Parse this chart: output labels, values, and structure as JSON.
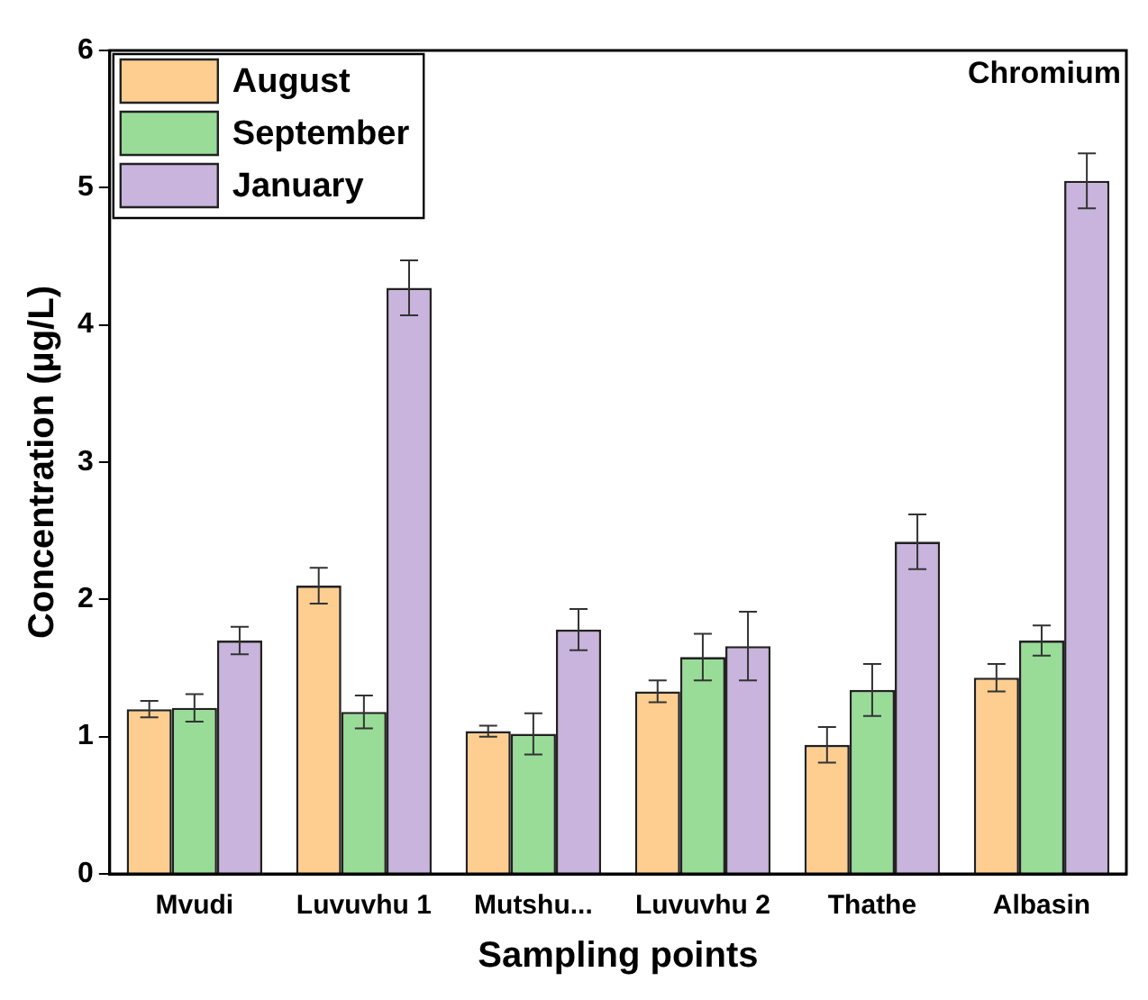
{
  "chart_data": {
    "type": "bar",
    "xlabel": "Sampling points",
    "ylabel": "Concentration (µg/L)",
    "annotations": [
      "Chromium"
    ],
    "categories": [
      "Mvudi",
      "Luvuvhu 1",
      "Mutshu...",
      "Luvuvhu 2",
      "Thathe",
      "Albasin"
    ],
    "series": [
      {
        "name": "August",
        "color": "#fdce90",
        "values": [
          1.2,
          2.1,
          1.04,
          1.33,
          0.94,
          1.43
        ],
        "errors": [
          0.06,
          0.13,
          0.04,
          0.08,
          0.13,
          0.1
        ]
      },
      {
        "name": "September",
        "color": "#98dc98",
        "values": [
          1.21,
          1.18,
          1.02,
          1.58,
          1.34,
          1.7
        ],
        "errors": [
          0.1,
          0.12,
          0.15,
          0.17,
          0.19,
          0.11
        ]
      },
      {
        "name": "January",
        "color": "#c8b4dc",
        "values": [
          1.7,
          4.27,
          1.78,
          1.66,
          2.42,
          5.05
        ],
        "errors": [
          0.1,
          0.2,
          0.15,
          0.25,
          0.2,
          0.2
        ]
      }
    ],
    "ylim": [
      0,
      6
    ],
    "yticks": [
      0,
      1,
      2,
      3,
      4,
      5,
      6
    ],
    "grid": false,
    "legend": "top left"
  }
}
